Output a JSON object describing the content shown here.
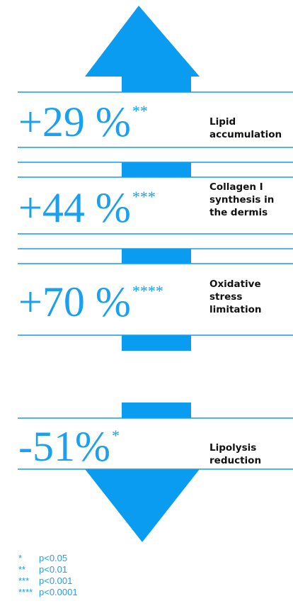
{
  "items": [
    {
      "value": "+29 %",
      "stars": "**",
      "label": [
        "Lipid",
        "accumulation"
      ]
    },
    {
      "value": "+44 %",
      "stars": "***",
      "label": [
        "Collagen I",
        "synthesis in",
        "the dermis"
      ]
    },
    {
      "value": "+70 %",
      "stars": "****",
      "label": [
        "Oxidative",
        "stress",
        "limitation"
      ]
    },
    {
      "value": "-51%",
      "stars": "*",
      "label": [
        "Lipolysis",
        "reduction"
      ]
    }
  ],
  "footnotes": [
    {
      "mark": "*",
      "text": "p<0.05"
    },
    {
      "mark": "**",
      "text": "p<0.01"
    },
    {
      "mark": "***",
      "text": "p<0.001"
    },
    {
      "mark": "****",
      "text": "p<0.0001"
    }
  ]
}
